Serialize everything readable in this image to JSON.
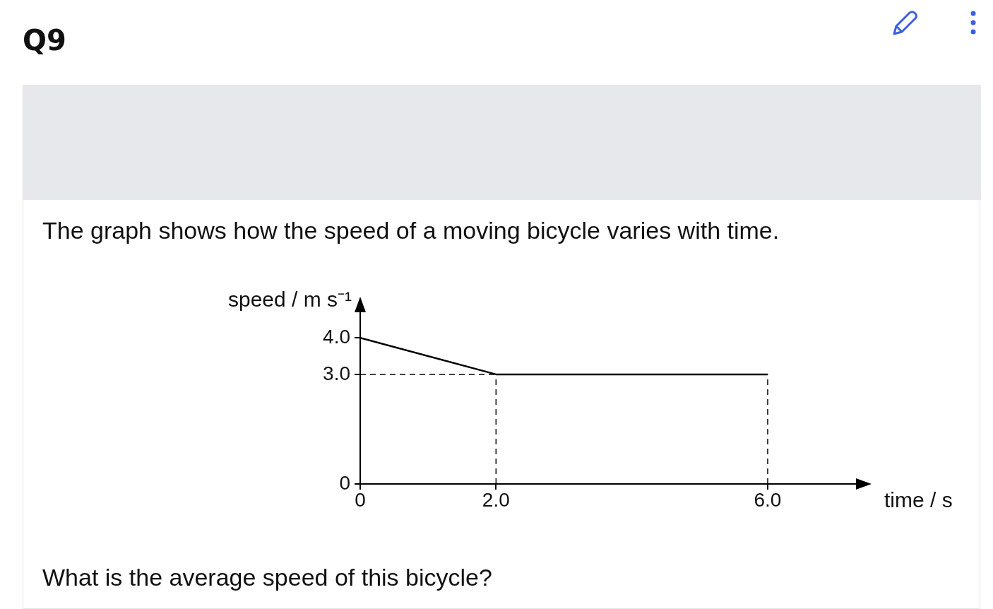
{
  "chart_data": {
    "type": "line",
    "title": "Q9",
    "subtitle": "The graph shows how the speed of a moving bicycle varies with time.",
    "xlabel": "time / s",
    "ylabel": "speed / m s⁻¹",
    "x": [
      0,
      2,
      6
    ],
    "series": [
      {
        "color": "#000000",
        "values": [
          4,
          3,
          3
        ]
      }
    ],
    "xlim": [
      0,
      7.3
    ],
    "xticks": [
      0,
      {
        "value": 2,
        "label": "2.0"
      },
      {
        "value": 6,
        "label": "6.0"
      }
    ],
    "ylim": [
      0,
      4.7
    ],
    "yticks": [
      0,
      {
        "value": 3,
        "label": "3.0"
      },
      {
        "value": 4,
        "label": "4.0"
      }
    ],
    "ref_lines": [
      {
        "axis": "y",
        "value": 3,
        "line_style": "dashed"
      },
      {
        "axis": "x",
        "value": 2,
        "line_style": "dashed"
      },
      {
        "axis": "x",
        "value": 6,
        "line_style": "dashed"
      }
    ],
    "grid": false,
    "legend": false,
    "marker": "none",
    "line_style": "solid",
    "annotations": [
      "What is the average speed of this bicycle?"
    ]
  }
}
